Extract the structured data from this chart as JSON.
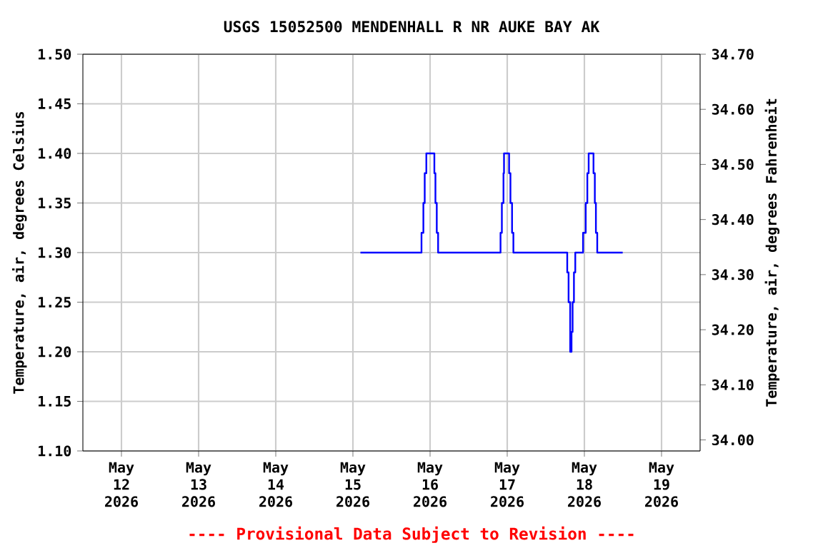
{
  "chart_data": {
    "type": "step",
    "title": "USGS 15052500 MENDENHALL R NR AUKE BAY AK",
    "ylabel": "Temperature, air, degrees Celsius",
    "y2label": "Temperature, air, degrees Fahrenheit",
    "annotations": [
      "---- Provisional Data Subject to Revision ----"
    ],
    "xlim": [
      "2026-05-11T12:00",
      "2026-05-19T12:00"
    ],
    "xticks": [
      {
        "value": "2026-05-12",
        "label": "May 12 2026"
      },
      {
        "value": "2026-05-13",
        "label": "May 13 2026"
      },
      {
        "value": "2026-05-14",
        "label": "May 14 2026"
      },
      {
        "value": "2026-05-15",
        "label": "May 15 2026"
      },
      {
        "value": "2026-05-16",
        "label": "May 16 2026"
      },
      {
        "value": "2026-05-17",
        "label": "May 17 2026"
      },
      {
        "value": "2026-05-18",
        "label": "May 18 2026"
      },
      {
        "value": "2026-05-19",
        "label": "May 19 2026"
      }
    ],
    "ylim": [
      1.1,
      1.5
    ],
    "yticks": [
      {
        "value": 1.1,
        "label": "1.10"
      },
      {
        "value": 1.15,
        "label": "1.15"
      },
      {
        "value": 1.2,
        "label": "1.20"
      },
      {
        "value": 1.25,
        "label": "1.25"
      },
      {
        "value": 1.3,
        "label": "1.30"
      },
      {
        "value": 1.35,
        "label": "1.35"
      },
      {
        "value": 1.4,
        "label": "1.40"
      },
      {
        "value": 1.45,
        "label": "1.45"
      },
      {
        "value": 1.5,
        "label": "1.50"
      }
    ],
    "y2lim": [
      33.98,
      34.7
    ],
    "y2ticks": [
      {
        "value": 34.0,
        "label": "34.00"
      },
      {
        "value": 34.1,
        "label": "34.10"
      },
      {
        "value": 34.2,
        "label": "34.20"
      },
      {
        "value": 34.3,
        "label": "34.30"
      },
      {
        "value": 34.4,
        "label": "34.40"
      },
      {
        "value": 34.5,
        "label": "34.50"
      },
      {
        "value": 34.6,
        "label": "34.60"
      },
      {
        "value": 34.7,
        "label": "34.70"
      }
    ],
    "grid": true,
    "series": [
      {
        "color": "#0000ff",
        "x": [
          "2026-05-15T02:20",
          "2026-05-15T21:20",
          "2026-05-15T21:55",
          "2026-05-15T22:20",
          "2026-05-15T22:50",
          "2026-05-16T01:20",
          "2026-05-16T01:40",
          "2026-05-16T02:05",
          "2026-05-16T02:30",
          "2026-05-16T21:55",
          "2026-05-16T22:20",
          "2026-05-16T22:50",
          "2026-05-16T23:00",
          "2026-05-17T00:35",
          "2026-05-17T01:00",
          "2026-05-17T01:30",
          "2026-05-17T01:55",
          "2026-05-17T18:40",
          "2026-05-17T19:05",
          "2026-05-17T19:35",
          "2026-05-17T20:00",
          "2026-05-17T20:20",
          "2026-05-17T20:45",
          "2026-05-17T21:10",
          "2026-05-17T23:35",
          "2026-05-18T00:25",
          "2026-05-18T00:55",
          "2026-05-18T01:20",
          "2026-05-18T02:50",
          "2026-05-18T03:15",
          "2026-05-18T03:35",
          "2026-05-18T04:00",
          "2026-05-18T11:55"
        ],
        "values": [
          1.3,
          1.32,
          1.35,
          1.38,
          1.4,
          1.38,
          1.35,
          1.32,
          1.3,
          1.32,
          1.35,
          1.38,
          1.4,
          1.38,
          1.35,
          1.32,
          1.3,
          1.28,
          1.25,
          1.2,
          1.22,
          1.25,
          1.28,
          1.3,
          1.32,
          1.35,
          1.38,
          1.4,
          1.38,
          1.35,
          1.32,
          1.3,
          1.3
        ]
      }
    ]
  }
}
